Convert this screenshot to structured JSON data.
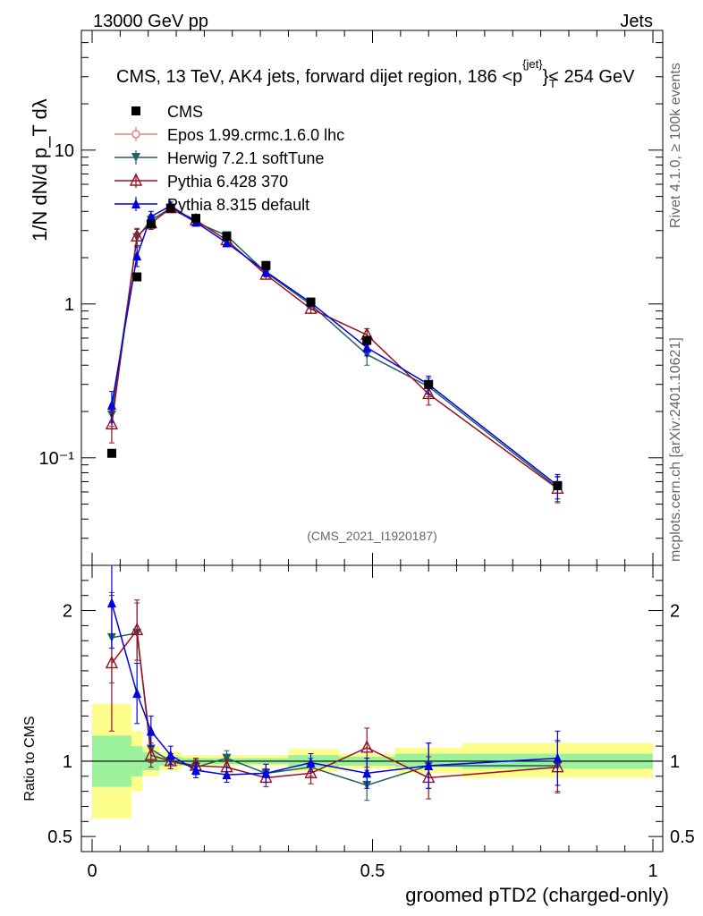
{
  "header": {
    "left": "13000 GeV pp",
    "right": "Jets"
  },
  "side_labels": {
    "rivet": "Rivet 4.1.0, ≥ 100k events",
    "mcplots": "mcplots.cern.ch [arXiv:2401.10621]"
  },
  "colors": {
    "cms": "#000000",
    "epos": "#f08080",
    "herwig": "#1f5f66",
    "pythia6": "#9a1020",
    "pythia8": "#0000e0",
    "band_inner": "#9cf29c",
    "band_outer": "#fdfd8c"
  },
  "chart_data": {
    "type": "scatter",
    "title": "CMS, 13 TeV, AK4 jets, forward dijet region, 186 <p_T^{jet}> < 254 GeV",
    "title_main": "CMS, 13 TeV, AK4 jets, forward dijet region, 186 <p",
    "title_sup": "{jet}",
    "title_sub": "T",
    "title_tail": "}< 254 GeV",
    "analysis_tag": "(CMS_2021_I1920187)",
    "xlabel": "groomed pTD2 (charged-only)",
    "ylabel": "1/N dN/d p_T dλ",
    "ratio_ylabel": "Ratio to CMS",
    "xlim": [
      0,
      1
    ],
    "ylim": [
      0.02,
      60
    ],
    "yscale": "log",
    "ratio_ylim": [
      0.4,
      2.3
    ],
    "x_ticks": [
      0,
      0.5,
      1
    ],
    "x_tick_labels": [
      "0",
      "0.5",
      "1"
    ],
    "y_ticks": [
      0.1,
      1,
      10
    ],
    "y_tick_labels": [
      "10⁻¹",
      "1",
      "10"
    ],
    "ratio_y_ticks": [
      0.5,
      1,
      2
    ],
    "ratio_y_tick_labels": [
      "0.5",
      "1",
      "2"
    ],
    "x": [
      0.035,
      0.08,
      0.105,
      0.14,
      0.185,
      0.24,
      0.31,
      0.39,
      0.49,
      0.6,
      0.83
    ],
    "bin_edges": [
      0.0,
      0.07,
      0.09,
      0.12,
      0.16,
      0.21,
      0.27,
      0.35,
      0.44,
      0.54,
      0.66,
      1.0
    ],
    "band_inner": [
      [
        0.83,
        1.17
      ],
      [
        0.9,
        1.1
      ],
      [
        0.94,
        1.06
      ],
      [
        0.97,
        1.03
      ],
      [
        0.98,
        1.02
      ],
      [
        0.98,
        1.02
      ],
      [
        0.98,
        1.02
      ],
      [
        0.96,
        1.04
      ],
      [
        0.97,
        1.03
      ],
      [
        0.96,
        1.05
      ],
      [
        0.95,
        1.05
      ]
    ],
    "band_outer": [
      [
        0.62,
        1.38
      ],
      [
        0.8,
        1.2
      ],
      [
        0.9,
        1.1
      ],
      [
        0.94,
        1.06
      ],
      [
        0.97,
        1.04
      ],
      [
        0.97,
        1.04
      ],
      [
        0.97,
        1.04
      ],
      [
        0.93,
        1.08
      ],
      [
        0.95,
        1.05
      ],
      [
        0.92,
        1.09
      ],
      [
        0.89,
        1.12
      ]
    ],
    "series": [
      {
        "name": "CMS",
        "key": "cms",
        "marker": "square",
        "line": false,
        "values": [
          0.107,
          1.5,
          3.3,
          4.2,
          3.6,
          2.75,
          1.78,
          1.03,
          0.58,
          0.3,
          0.066
        ],
        "errors": [
          0.006,
          0.08,
          0.12,
          0.12,
          0.1,
          0.08,
          0.05,
          0.03,
          0.02,
          0.015,
          0.004
        ],
        "ratio": [],
        "ratio_err": []
      },
      {
        "name": "Epos 1.99.crmc.1.6.0 lhc",
        "key": "epos",
        "marker": "circle-open",
        "line": true,
        "values": [],
        "errors": [],
        "ratio": [],
        "ratio_err": []
      },
      {
        "name": "Herwig 7.2.1 softTune",
        "key": "herwig",
        "marker": "triangle-down",
        "line": true,
        "values": [
          0.19,
          2.7,
          3.5,
          4.2,
          3.4,
          2.78,
          1.6,
          0.99,
          0.47,
          0.29,
          0.064
        ],
        "errors": [
          0.03,
          0.35,
          0.3,
          0.25,
          0.2,
          0.15,
          0.1,
          0.06,
          0.07,
          0.04,
          0.012
        ],
        "ratio": [
          1.82,
          1.85,
          1.08,
          1.0,
          0.96,
          1.02,
          0.92,
          0.96,
          0.84,
          0.97,
          0.97
        ],
        "ratio_err": [
          0.3,
          0.2,
          0.09,
          0.05,
          0.05,
          0.05,
          0.06,
          0.06,
          0.1,
          0.15,
          0.17
        ]
      },
      {
        "name": "Pythia 6.428 370",
        "key": "pythia6",
        "marker": "triangle-up-open",
        "line": true,
        "values": [
          0.165,
          2.75,
          3.35,
          4.2,
          3.5,
          2.6,
          1.55,
          0.93,
          0.63,
          0.26,
          0.063
        ],
        "errors": [
          0.04,
          0.35,
          0.3,
          0.25,
          0.2,
          0.15,
          0.1,
          0.06,
          0.06,
          0.04,
          0.012
        ],
        "ratio": [
          1.65,
          1.87,
          1.04,
          1.0,
          0.97,
          0.96,
          0.89,
          0.92,
          1.09,
          0.89,
          0.96
        ],
        "ratio_err": [
          0.45,
          0.2,
          0.08,
          0.05,
          0.05,
          0.05,
          0.06,
          0.07,
          0.13,
          0.14,
          0.17
        ]
      },
      {
        "name": "Pythia 8.315 default",
        "key": "pythia8",
        "marker": "triangle-up",
        "line": true,
        "values": [
          0.22,
          2.05,
          3.7,
          4.35,
          3.4,
          2.5,
          1.62,
          1.02,
          0.52,
          0.3,
          0.066
        ],
        "errors": [
          0.05,
          0.3,
          0.3,
          0.25,
          0.2,
          0.15,
          0.1,
          0.06,
          0.06,
          0.04,
          0.012
        ],
        "ratio": [
          2.05,
          1.45,
          1.2,
          1.04,
          0.94,
          0.91,
          0.92,
          0.99,
          0.92,
          0.97,
          1.02
        ],
        "ratio_err": [
          0.3,
          0.2,
          0.1,
          0.06,
          0.05,
          0.05,
          0.06,
          0.06,
          0.1,
          0.15,
          0.18
        ]
      }
    ],
    "legend_position": "top-left"
  }
}
